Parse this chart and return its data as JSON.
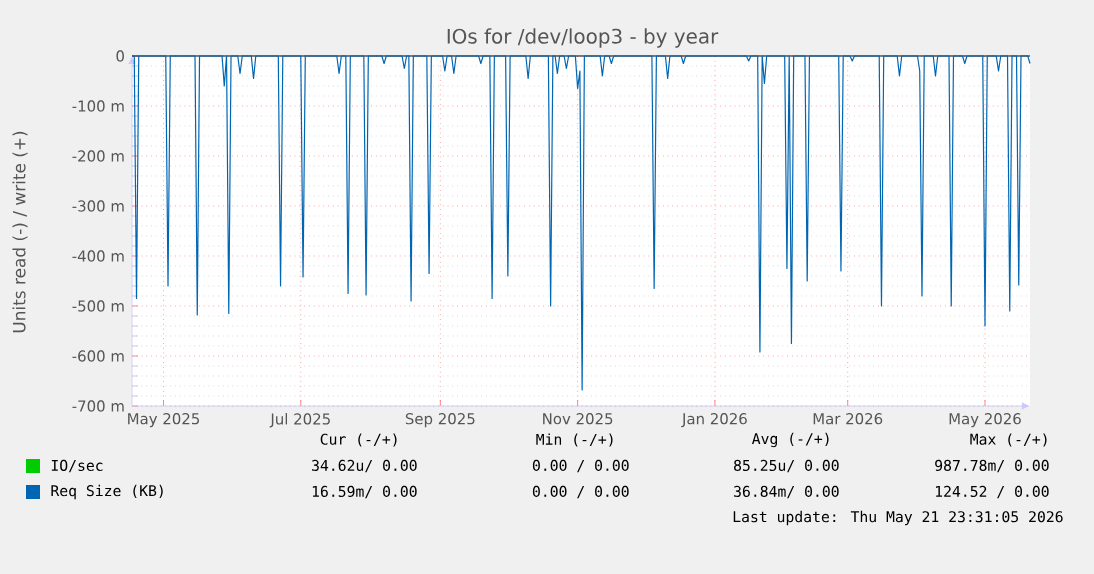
{
  "chart_data": {
    "type": "line",
    "title": "IOs for /dev/loop3 - by year",
    "ylabel": "Units read (-) / write (+)",
    "xlim": [
      "2025-04-17",
      "2026-05-21"
    ],
    "xticks": [
      {
        "value": "2025-05-01",
        "label": "May 2025"
      },
      {
        "value": "2025-07-01",
        "label": "Jul 2025"
      },
      {
        "value": "2025-09-01",
        "label": "Sep 2025"
      },
      {
        "value": "2025-11-01",
        "label": "Nov 2025"
      },
      {
        "value": "2026-01-01",
        "label": "Jan 2026"
      },
      {
        "value": "2026-03-01",
        "label": "Mar 2026"
      },
      {
        "value": "2026-05-01",
        "label": "May 2026"
      }
    ],
    "ylim": [
      -700,
      0
    ],
    "yticks": [
      {
        "value": -700,
        "label": "-700 m"
      },
      {
        "value": -600,
        "label": "-600 m"
      },
      {
        "value": -500,
        "label": "-500 m"
      },
      {
        "value": -400,
        "label": "-400 m"
      },
      {
        "value": -300,
        "label": "-300 m"
      },
      {
        "value": -200,
        "label": "-200 m"
      },
      {
        "value": -100,
        "label": "-100 m"
      },
      0
    ],
    "grid": true,
    "legend": "bottom",
    "marker": "none",
    "line_style": "solid",
    "series": [
      {
        "name": "IO/sec",
        "color": "#00cc00"
      },
      {
        "name": "Req Size (KB)",
        "color": "#0066b3",
        "x": [
          "2025-04-17",
          "2025-04-18",
          "2025-04-19",
          "2025-04-20",
          "2025-05-02",
          "2025-05-03",
          "2025-05-04",
          "2025-05-15",
          "2025-05-16",
          "2025-05-17",
          "2025-05-27",
          "2025-05-28",
          "2025-05-29",
          "2025-05-30",
          "2025-05-31",
          "2025-06-03",
          "2025-06-04",
          "2025-06-05",
          "2025-06-09",
          "2025-06-10",
          "2025-06-11",
          "2025-06-21",
          "2025-06-22",
          "2025-06-23",
          "2025-07-01",
          "2025-07-02",
          "2025-07-03",
          "2025-07-17",
          "2025-07-18",
          "2025-07-19",
          "2025-07-21",
          "2025-07-22",
          "2025-07-23",
          "2025-07-29",
          "2025-07-30",
          "2025-07-31",
          "2025-08-06",
          "2025-08-07",
          "2025-08-08",
          "2025-08-15",
          "2025-08-16",
          "2025-08-17",
          "2025-08-18",
          "2025-08-19",
          "2025-08-20",
          "2025-08-26",
          "2025-08-27",
          "2025-08-28",
          "2025-09-02",
          "2025-09-03",
          "2025-09-04",
          "2025-09-06",
          "2025-09-07",
          "2025-09-08",
          "2025-09-18",
          "2025-09-19",
          "2025-09-20",
          "2025-09-23",
          "2025-09-24",
          "2025-09-25",
          "2025-09-30",
          "2025-10-01",
          "2025-10-02",
          "2025-10-09",
          "2025-10-10",
          "2025-10-11",
          "2025-10-19",
          "2025-10-20",
          "2025-10-21",
          "2025-10-22",
          "2025-10-23",
          "2025-10-24",
          "2025-10-26",
          "2025-10-27",
          "2025-10-28",
          "2025-10-31",
          "2025-11-01",
          "2025-11-02",
          "2025-11-03",
          "2025-11-04",
          "2025-11-11",
          "2025-11-12",
          "2025-11-13",
          "2025-11-15",
          "2025-11-16",
          "2025-11-17",
          "2025-12-04",
          "2025-12-05",
          "2025-12-06",
          "2025-12-10",
          "2025-12-11",
          "2025-12-12",
          "2025-12-17",
          "2025-12-18",
          "2025-12-19",
          "2026-01-15",
          "2026-01-16",
          "2026-01-17",
          "2026-01-20",
          "2026-01-21",
          "2026-01-22",
          "2026-01-23",
          "2026-01-24",
          "2026-02-01",
          "2026-02-02",
          "2026-02-03",
          "2026-02-04",
          "2026-02-05",
          "2026-02-10",
          "2026-02-11",
          "2026-02-12",
          "2026-02-25",
          "2026-02-26",
          "2026-02-27",
          "2026-03-02",
          "2026-03-03",
          "2026-03-04",
          "2026-03-15",
          "2026-03-16",
          "2026-03-17",
          "2026-03-23",
          "2026-03-24",
          "2026-03-25",
          "2026-04-01",
          "2026-04-02",
          "2026-04-03",
          "2026-04-04",
          "2026-04-08",
          "2026-04-09",
          "2026-04-10",
          "2026-04-15",
          "2026-04-16",
          "2026-04-17",
          "2026-04-21",
          "2026-04-22",
          "2026-04-23",
          "2026-04-30",
          "2026-05-01",
          "2026-05-02",
          "2026-05-06",
          "2026-05-07",
          "2026-05-08",
          "2026-05-11",
          "2026-05-12",
          "2026-05-13",
          "2026-05-15",
          "2026-05-16",
          "2026-05-17",
          "2026-05-20",
          "2026-05-21"
        ],
        "values": [
          0,
          0,
          -485,
          0,
          0,
          -460,
          0,
          0,
          -518,
          0,
          0,
          -60,
          0,
          -515,
          0,
          0,
          -35,
          0,
          0,
          -45,
          0,
          0,
          -460,
          0,
          0,
          -442,
          0,
          0,
          -35,
          0,
          0,
          -475,
          0,
          0,
          -478,
          0,
          0,
          -15,
          0,
          0,
          -25,
          0,
          0,
          -490,
          0,
          0,
          -435,
          0,
          0,
          -30,
          0,
          0,
          -35,
          0,
          0,
          -15,
          0,
          0,
          -485,
          0,
          0,
          -440,
          0,
          0,
          -45,
          0,
          0,
          -500,
          0,
          0,
          -35,
          0,
          0,
          -25,
          0,
          0,
          -65,
          -30,
          -668,
          0,
          0,
          -40,
          0,
          0,
          -15,
          0,
          0,
          -465,
          0,
          0,
          -45,
          0,
          0,
          -15,
          0,
          0,
          -10,
          0,
          0,
          -592,
          0,
          -55,
          0,
          0,
          -425,
          0,
          -575,
          0,
          0,
          -450,
          0,
          0,
          -430,
          0,
          0,
          -10,
          0,
          0,
          -500,
          0,
          0,
          -40,
          0,
          0,
          -30,
          -480,
          0,
          0,
          -40,
          0,
          0,
          -500,
          0,
          0,
          -15,
          0,
          0,
          -540,
          0,
          0,
          -30,
          0,
          0,
          -510,
          0,
          0,
          -458,
          0,
          0,
          -15
        ]
      }
    ],
    "annotations": [
      "Cur (-/+)",
      "Min (-/+)",
      "Avg (-/+)",
      "Max (-/+)",
      "34.62u/  0.00",
      "0.00 /  0.00",
      "85.25u/  0.00",
      "987.78m/  0.00",
      "16.59m/  0.00",
      "0.00 /  0.00",
      "36.84m/  0.00",
      "124.52 /  0.00",
      "Last update: Thu May 21 23:31:05 2026"
    ]
  }
}
